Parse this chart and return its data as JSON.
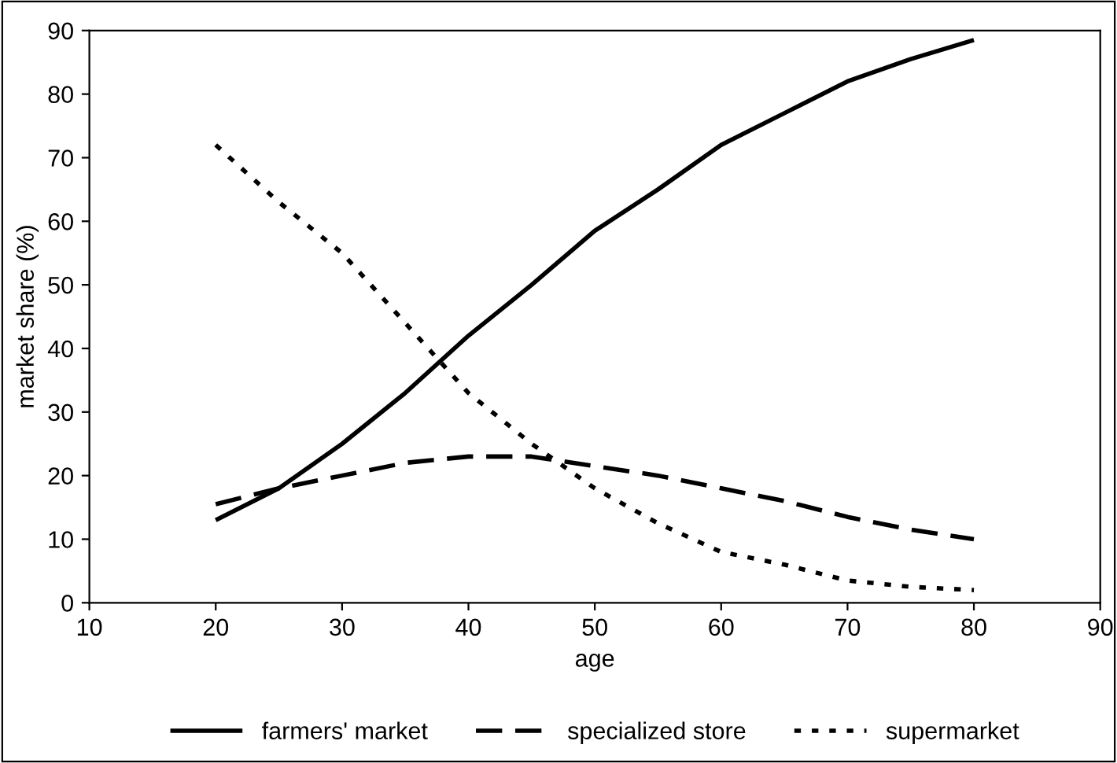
{
  "chart_data": {
    "type": "line",
    "xlabel": "age",
    "ylabel": "market share (%)",
    "xlim": [
      10,
      90
    ],
    "xticks": [
      10,
      20,
      30,
      40,
      50,
      60,
      70,
      80,
      90
    ],
    "ylim": [
      0,
      90
    ],
    "yticks": [
      0,
      10,
      20,
      30,
      40,
      50,
      60,
      70,
      80,
      90
    ],
    "x": [
      20,
      25,
      30,
      35,
      40,
      45,
      50,
      55,
      60,
      65,
      70,
      75,
      80
    ],
    "grid": false,
    "legend": "bottom",
    "marker": "none",
    "series": [
      {
        "name": "farmers' market",
        "color": "#000000",
        "line_style": "solid",
        "values": [
          13,
          18,
          25,
          33,
          42,
          50,
          58.5,
          65,
          72,
          77,
          82,
          85.5,
          88.5
        ]
      },
      {
        "name": "specialized store",
        "color": "#000000",
        "line_style": "dashed",
        "values": [
          15.5,
          18,
          20,
          22,
          23,
          23,
          21.5,
          20,
          18,
          16,
          13.5,
          11.5,
          10
        ]
      },
      {
        "name": "supermarket",
        "color": "#000000",
        "line_style": "dotted",
        "values": [
          72,
          63,
          55,
          44,
          33,
          25,
          18,
          12.5,
          8,
          6,
          3.5,
          2.5,
          2
        ]
      }
    ]
  }
}
